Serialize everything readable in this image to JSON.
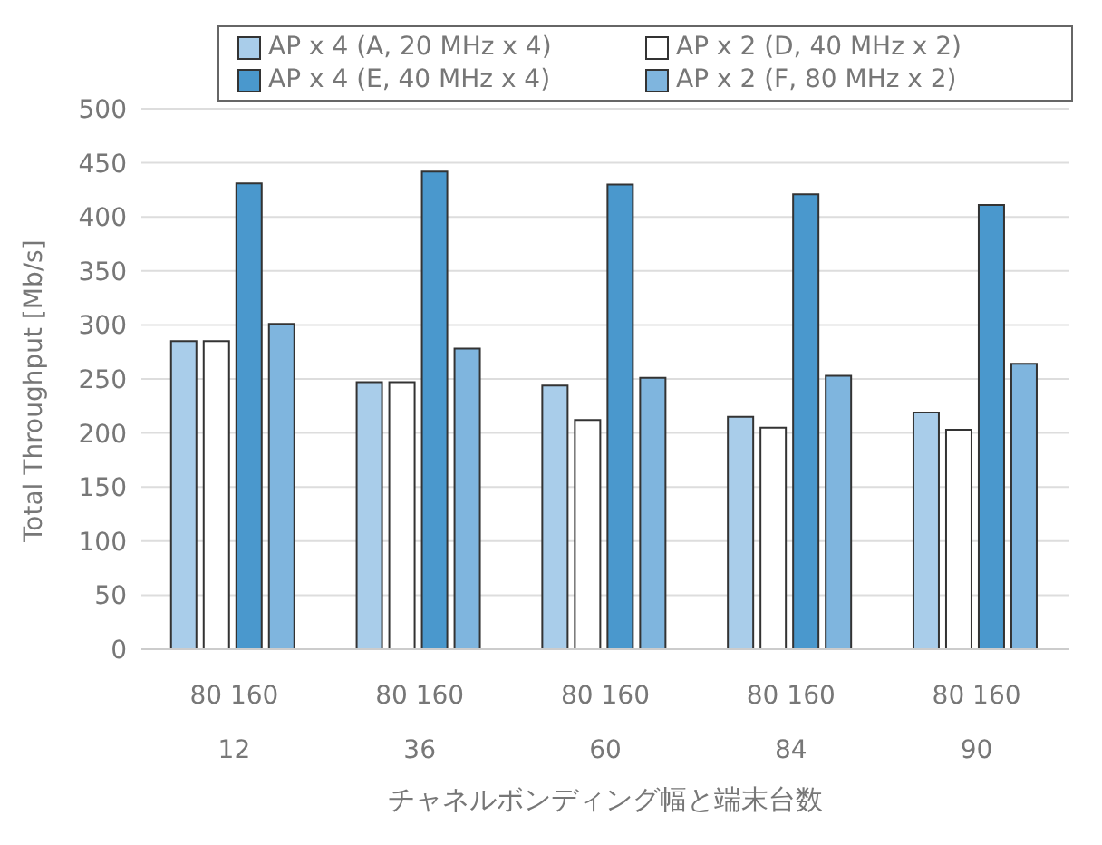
{
  "chart_data": {
    "type": "bar",
    "xlabel": "チャネルボンディング幅と端末台数",
    "ylabel": "Total Throughput [Mb/s]",
    "categories": [
      "80 160\n12",
      "80 160\n36",
      "80 160\n60",
      "80 160\n84",
      "80 160\n90"
    ],
    "series": [
      {
        "name": "AP x 4 (A, 20 MHz x 4)",
        "color": "#a9cdea",
        "values": [
          285,
          247,
          244,
          215,
          219
        ]
      },
      {
        "name": "AP x 2 (D, 40 MHz x 2)",
        "color": "#ffffff",
        "values": [
          285,
          247,
          212,
          205,
          203
        ]
      },
      {
        "name": "AP x 4 (E, 40 MHz x 4)",
        "color": "#4a98cd",
        "values": [
          431,
          442,
          430,
          421,
          411
        ]
      },
      {
        "name": "AP x 2 (F, 80 MHz x 2)",
        "color": "#7fb5de",
        "values": [
          301,
          278,
          251,
          253,
          264
        ]
      }
    ],
    "ylim": [
      0,
      500
    ],
    "yticks": [
      0,
      50,
      100,
      150,
      200,
      250,
      300,
      350,
      400,
      450,
      500
    ],
    "grid": "y",
    "legend": "top"
  }
}
